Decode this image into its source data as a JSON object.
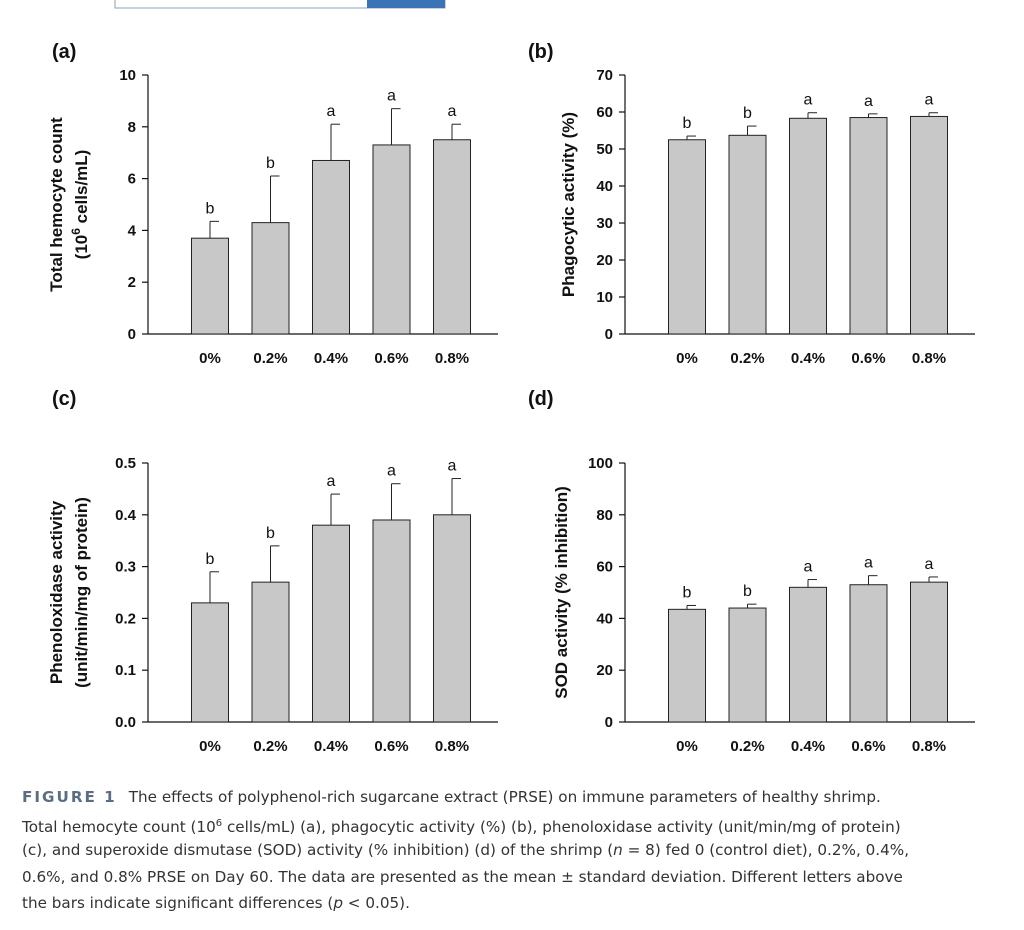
{
  "chart_data": [
    {
      "type": "bar",
      "panel_label": "(a)",
      "ylabel": [
        [
          {
            "text": "Total hemocyte count"
          }
        ],
        [
          {
            "text": "(10"
          },
          {
            "text": "6",
            "style": "sup"
          },
          {
            "text": " cells/mL)"
          }
        ]
      ],
      "categories": [
        "0%",
        "0.2%",
        "0.4%",
        "0.6%",
        "0.8%"
      ],
      "values": [
        3.7,
        4.3,
        6.7,
        7.3,
        7.5
      ],
      "errors": [
        0.65,
        1.8,
        1.4,
        1.4,
        0.6
      ],
      "letters": [
        "b",
        "b",
        "a",
        "a",
        "a"
      ],
      "color": "#c8c8c8",
      "ylim": [
        0,
        10
      ],
      "yticks": [
        0,
        2,
        4,
        6,
        8,
        10
      ]
    },
    {
      "type": "bar",
      "panel_label": "(b)",
      "ylabel": [
        [
          {
            "text": "Phagocytic activity (%)"
          }
        ]
      ],
      "categories": [
        "0%",
        "0.2%",
        "0.4%",
        "0.6%",
        "0.8%"
      ],
      "values": [
        52.5,
        53.7,
        58.3,
        58.5,
        58.8
      ],
      "errors": [
        1.0,
        2.5,
        1.5,
        1.0,
        1.0
      ],
      "letters": [
        "b",
        "b",
        "a",
        "a",
        "a"
      ],
      "color": "#c8c8c8",
      "ylim": [
        0,
        70
      ],
      "yticks": [
        0,
        10,
        20,
        30,
        40,
        50,
        60,
        70
      ]
    },
    {
      "type": "bar",
      "panel_label": "(c)",
      "ylabel": [
        [
          {
            "text": "Phenoloxidase activity"
          }
        ],
        [
          {
            "text": "(unit/min/mg of protein)"
          }
        ]
      ],
      "categories": [
        "0%",
        "0.2%",
        "0.4%",
        "0.6%",
        "0.8%"
      ],
      "values": [
        0.23,
        0.27,
        0.38,
        0.39,
        0.4
      ],
      "errors": [
        0.06,
        0.07,
        0.06,
        0.07,
        0.07
      ],
      "letters": [
        "b",
        "b",
        "a",
        "a",
        "a"
      ],
      "color": "#c8c8c8",
      "ylim": [
        0,
        0.5
      ],
      "yticks": [
        {
          "value": 0,
          "label": "0.0"
        },
        0.1,
        0.2,
        0.3,
        0.4,
        0.5
      ]
    },
    {
      "type": "bar",
      "panel_label": "(d)",
      "ylabel": [
        [
          {
            "text": "SOD activity (% inhibition)"
          }
        ]
      ],
      "categories": [
        "0%",
        "0.2%",
        "0.4%",
        "0.6%",
        "0.8%"
      ],
      "values": [
        43.5,
        44,
        52,
        53,
        54
      ],
      "errors": [
        1.5,
        1.5,
        3,
        3.5,
        2
      ],
      "letters": [
        "b",
        "b",
        "a",
        "a",
        "a"
      ],
      "color": "#c8c8c8",
      "ylim": [
        0,
        100
      ],
      "yticks": [
        0,
        20,
        40,
        60,
        80,
        100
      ]
    }
  ],
  "caption": {
    "lines": [
      [
        {
          "text": "FIGURE 1",
          "style": "label"
        },
        {
          "text": "The effects of polyphenol-rich sugarcane extract (PRSE) on immune parameters of healthy shrimp."
        }
      ],
      [
        {
          "text": "Total hemocyte count (10"
        },
        {
          "text": "6",
          "style": "sup"
        },
        {
          "text": " cells/mL) (a), phagocytic activity (%) (b), phenoloxidase activity (unit/min/mg of protein)"
        }
      ],
      [
        {
          "text": "(c), and superoxide dismutase (SOD) activity (% inhibition) (d) of the shrimp ("
        },
        {
          "text": "n",
          "style": "italic"
        },
        {
          "text": " = 8) fed 0 (control diet), 0.2%, 0.4%,"
        }
      ],
      [
        {
          "text": "0.6%, and 0.8% PRSE on Day 60. The data are presented as the mean ± standard deviation. Different letters above"
        }
      ],
      [
        {
          "text": "the bars indicate significant differences ("
        },
        {
          "text": "p",
          "style": "italic"
        },
        {
          "text": " < 0.05)."
        }
      ]
    ]
  }
}
